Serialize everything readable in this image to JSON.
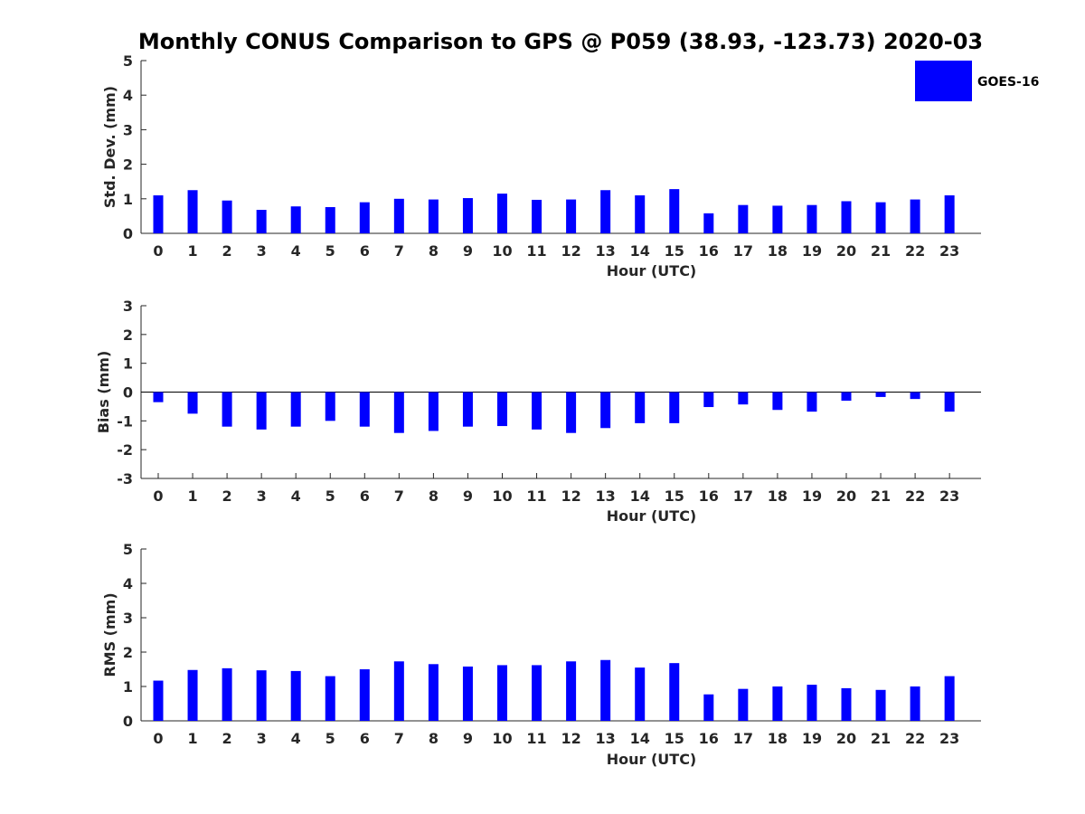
{
  "title": "Monthly CONUS Comparison to GPS @ P059 (38.93, -123.73) 2020-03",
  "legend": {
    "label": "GOES-16",
    "color": "#0000ff",
    "position": "top-right"
  },
  "chart_data": [
    {
      "type": "bar",
      "id": "stddev",
      "xlabel": "Hour (UTC)",
      "ylabel": "Std. Dev. (mm)",
      "ylim": [
        0,
        5
      ],
      "yticks": [
        0,
        1,
        2,
        3,
        4,
        5
      ],
      "categories": [
        "0",
        "1",
        "2",
        "3",
        "4",
        "5",
        "6",
        "7",
        "8",
        "9",
        "10",
        "11",
        "12",
        "13",
        "14",
        "15",
        "16",
        "17",
        "18",
        "19",
        "20",
        "21",
        "22",
        "23"
      ],
      "series": [
        {
          "name": "GOES-16",
          "values": [
            1.1,
            1.25,
            0.95,
            0.68,
            0.78,
            0.76,
            0.9,
            1.0,
            0.98,
            1.02,
            1.15,
            0.97,
            0.98,
            1.25,
            1.1,
            1.28,
            0.58,
            0.82,
            0.8,
            0.82,
            0.93,
            0.9,
            0.98,
            1.1
          ]
        }
      ]
    },
    {
      "type": "bar",
      "id": "bias",
      "xlabel": "Hour (UTC)",
      "ylabel": "Bias (mm)",
      "ylim": [
        -3,
        3
      ],
      "yticks": [
        -3,
        -2,
        -1,
        0,
        1,
        2,
        3
      ],
      "categories": [
        "0",
        "1",
        "2",
        "3",
        "4",
        "5",
        "6",
        "7",
        "8",
        "9",
        "10",
        "11",
        "12",
        "13",
        "14",
        "15",
        "16",
        "17",
        "18",
        "19",
        "20",
        "21",
        "22",
        "23"
      ],
      "series": [
        {
          "name": "GOES-16",
          "values": [
            -0.35,
            -0.75,
            -1.2,
            -1.3,
            -1.2,
            -1.0,
            -1.2,
            -1.42,
            -1.35,
            -1.2,
            -1.18,
            -1.3,
            -1.42,
            -1.25,
            -1.08,
            -1.08,
            -0.52,
            -0.43,
            -0.62,
            -0.68,
            -0.3,
            -0.17,
            -0.24,
            -0.68
          ]
        }
      ]
    },
    {
      "type": "bar",
      "id": "rms",
      "xlabel": "Hour (UTC)",
      "ylabel": "RMS (mm)",
      "ylim": [
        0,
        5
      ],
      "yticks": [
        0,
        1,
        2,
        3,
        4,
        5
      ],
      "categories": [
        "0",
        "1",
        "2",
        "3",
        "4",
        "5",
        "6",
        "7",
        "8",
        "9",
        "10",
        "11",
        "12",
        "13",
        "14",
        "15",
        "16",
        "17",
        "18",
        "19",
        "20",
        "21",
        "22",
        "23"
      ],
      "series": [
        {
          "name": "GOES-16",
          "values": [
            1.17,
            1.48,
            1.53,
            1.47,
            1.45,
            1.3,
            1.5,
            1.73,
            1.65,
            1.58,
            1.62,
            1.62,
            1.73,
            1.77,
            1.55,
            1.68,
            0.77,
            0.93,
            1.0,
            1.05,
            0.95,
            0.9,
            1.0,
            1.3
          ]
        }
      ]
    }
  ]
}
